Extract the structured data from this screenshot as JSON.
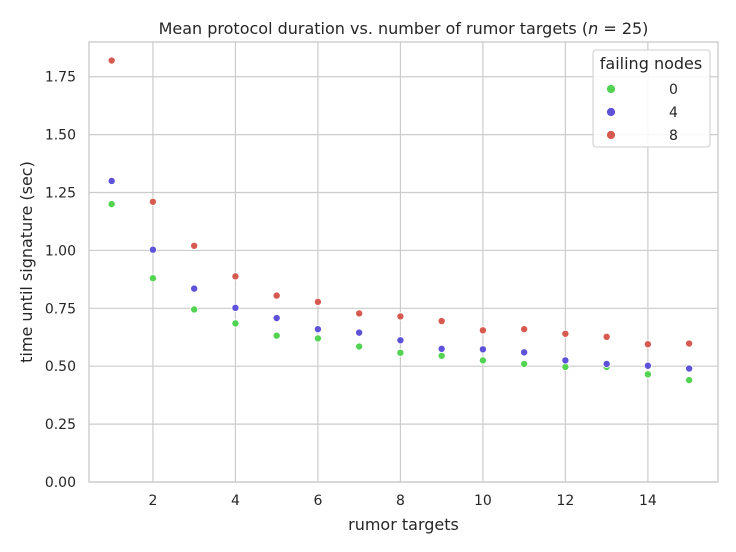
{
  "chart_data": {
    "type": "scatter",
    "title_main": "Mean protocol duration vs. number of rumor targets (",
    "title_var": "n",
    "title_rest": " = 25)",
    "xlabel": "rumor targets",
    "ylabel": "time until signature (sec)",
    "xlim": [
      0.45,
      15.7
    ],
    "ylim": [
      0,
      1.9
    ],
    "xticks": [
      2,
      4,
      6,
      8,
      10,
      12,
      14
    ],
    "yticks": [
      0.0,
      0.25,
      0.5,
      0.75,
      1.0,
      1.25,
      1.5,
      1.75
    ],
    "ytick_labels": [
      "0.00",
      "0.25",
      "0.50",
      "0.75",
      "1.00",
      "1.25",
      "1.50",
      "1.75"
    ],
    "grid": true,
    "legend": {
      "title": "failing nodes",
      "placement": "top-right"
    },
    "x": [
      1,
      2,
      3,
      4,
      5,
      6,
      7,
      8,
      9,
      10,
      11,
      12,
      13,
      14,
      15
    ],
    "series": [
      {
        "name": "0",
        "color": "#52d452",
        "values": [
          1.2,
          0.88,
          0.745,
          0.685,
          0.632,
          0.62,
          0.585,
          0.558,
          0.545,
          0.525,
          0.51,
          0.497,
          0.497,
          0.465,
          0.44
        ]
      },
      {
        "name": "4",
        "color": "#5e52d9",
        "values": [
          1.3,
          1.003,
          0.835,
          0.752,
          0.708,
          0.66,
          0.645,
          0.612,
          0.575,
          0.573,
          0.56,
          0.525,
          0.51,
          0.502,
          0.49
        ]
      },
      {
        "name": "8",
        "color": "#d65a50",
        "values": [
          1.82,
          1.21,
          1.02,
          0.888,
          0.805,
          0.778,
          0.728,
          0.715,
          0.695,
          0.655,
          0.66,
          0.64,
          0.627,
          0.595,
          0.598
        ]
      }
    ]
  }
}
